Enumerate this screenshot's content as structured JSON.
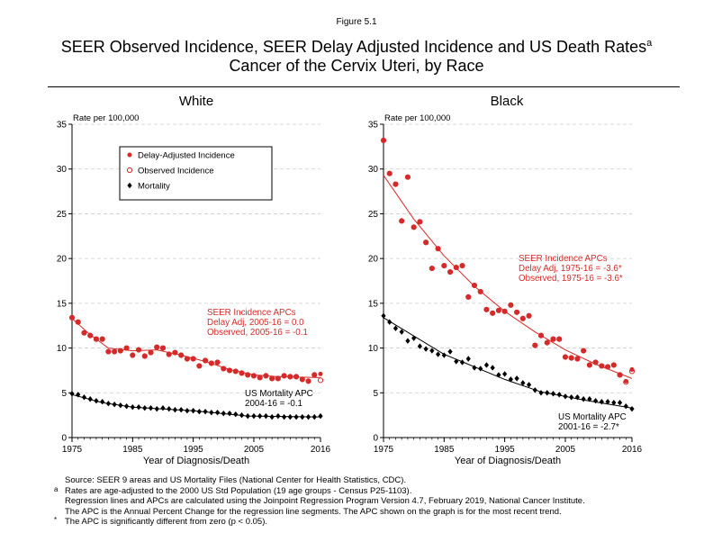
{
  "figure_label": "Figure 5.1",
  "title_line1": "SEER Observed Incidence, SEER Delay Adjusted Incidence and US Death Rates",
  "title_sup": "a",
  "title_line2": "Cancer of the Cervix Uteri, by Race",
  "legend": {
    "delay": "Delay-Adjusted Incidence",
    "observed": "Observed Incidence",
    "mortality": "Mortality"
  },
  "colors": {
    "incidence": "#d42a2a",
    "mortality": "#000000",
    "grid": "#cccccc"
  },
  "footnotes": [
    {
      "mark": "",
      "text": "Source: SEER 9 areas and US Mortality Files (National Center for Health Statistics, CDC)."
    },
    {
      "mark": "a",
      "text": "Rates are age-adjusted to the 2000 US Std Population (19 age groups - Census P25-1103)."
    },
    {
      "mark": "",
      "text": "Regression lines and APCs are calculated using the Joinpoint Regression Program Version 4.7, February 2019, National Cancer Institute."
    },
    {
      "mark": "",
      "text": "The APC is the Annual Percent Change for the regression line segments. The APC shown on the graph is for the most recent trend."
    },
    {
      "mark": "*",
      "text": "The APC is significantly different from zero (p < 0.05)."
    }
  ],
  "chart_data": [
    {
      "type": "scatter",
      "title": "White",
      "xlabel": "Year of Diagnosis/Death",
      "ylabel": "Rate per 100,000",
      "xlim": [
        1975,
        2016
      ],
      "ylim": [
        0,
        35
      ],
      "xticks": [
        1975,
        1985,
        1995,
        2005,
        2016
      ],
      "yticks": [
        0,
        5,
        10,
        15,
        20,
        25,
        30,
        35
      ],
      "grid": true,
      "legend_position": "top-left",
      "annotations": {
        "incidence": [
          "SEER Incidence APCs",
          "Delay Adj, 2005-16 = 0.0",
          "Observed, 2005-16 = -0.1"
        ],
        "mortality": [
          "US Mortality APC",
          "2004-16 = -0.1"
        ]
      },
      "x": [
        1975,
        1976,
        1977,
        1978,
        1979,
        1980,
        1981,
        1982,
        1983,
        1984,
        1985,
        1986,
        1987,
        1988,
        1989,
        1990,
        1991,
        1992,
        1993,
        1994,
        1995,
        1996,
        1997,
        1998,
        1999,
        2000,
        2001,
        2002,
        2003,
        2004,
        2005,
        2006,
        2007,
        2008,
        2009,
        2010,
        2011,
        2012,
        2013,
        2014,
        2015,
        2016
      ],
      "series": [
        {
          "name": "Delay-Adjusted Incidence",
          "values": [
            13.4,
            12.9,
            11.7,
            11.4,
            11.0,
            11.0,
            9.6,
            9.6,
            9.7,
            10.0,
            9.2,
            9.8,
            9.1,
            9.5,
            10.1,
            10.0,
            9.3,
            9.5,
            9.2,
            8.8,
            8.8,
            8.0,
            8.6,
            8.3,
            8.4,
            7.7,
            7.5,
            7.4,
            7.2,
            7.0,
            6.9,
            6.7,
            6.9,
            6.6,
            6.6,
            6.9,
            6.8,
            6.8,
            6.5,
            6.3,
            7.0,
            7.1
          ]
        },
        {
          "name": "Observed Incidence",
          "values": [
            13.4,
            12.9,
            11.7,
            11.4,
            11.0,
            11.0,
            9.6,
            9.6,
            9.7,
            10.0,
            9.2,
            9.8,
            9.1,
            9.5,
            10.1,
            10.0,
            9.3,
            9.5,
            9.2,
            8.8,
            8.8,
            8.0,
            8.6,
            8.3,
            8.4,
            7.7,
            7.5,
            7.4,
            7.2,
            7.0,
            6.9,
            6.7,
            6.9,
            6.6,
            6.6,
            6.9,
            6.8,
            6.8,
            6.5,
            6.3,
            7.0,
            6.4
          ]
        },
        {
          "name": "Mortality",
          "values": [
            4.9,
            4.8,
            4.5,
            4.3,
            4.1,
            4.0,
            3.8,
            3.7,
            3.6,
            3.5,
            3.4,
            3.4,
            3.3,
            3.3,
            3.2,
            3.3,
            3.2,
            3.1,
            3.1,
            3.0,
            3.0,
            2.9,
            2.9,
            2.8,
            2.8,
            2.7,
            2.7,
            2.6,
            2.5,
            2.4,
            2.4,
            2.4,
            2.4,
            2.3,
            2.4,
            2.3,
            2.3,
            2.3,
            2.3,
            2.3,
            2.3,
            2.4
          ]
        }
      ],
      "fits": {
        "incidence": [
          [
            1975,
            13.3
          ],
          [
            1978,
            11.5
          ],
          [
            1981,
            10.0
          ],
          [
            1985,
            9.7
          ],
          [
            1989,
            9.8
          ],
          [
            1993,
            9.2
          ],
          [
            1997,
            8.5
          ],
          [
            2001,
            7.6
          ],
          [
            2005,
            7.0
          ],
          [
            2009,
            6.8
          ],
          [
            2016,
            6.7
          ]
        ],
        "mortality": [
          [
            1975,
            4.8
          ],
          [
            1980,
            3.9
          ],
          [
            1985,
            3.4
          ],
          [
            1995,
            3.0
          ],
          [
            2004,
            2.4
          ],
          [
            2016,
            2.3
          ]
        ]
      }
    },
    {
      "type": "scatter",
      "title": "Black",
      "xlabel": "Year of Diagnosis/Death",
      "ylabel": "Rate per 100,000",
      "xlim": [
        1975,
        2016
      ],
      "ylim": [
        0,
        35
      ],
      "xticks": [
        1975,
        1985,
        1995,
        2005,
        2016
      ],
      "yticks": [
        0,
        5,
        10,
        15,
        20,
        25,
        30,
        35
      ],
      "grid": true,
      "legend_position": "none",
      "annotations": {
        "incidence": [
          "SEER Incidence APCs",
          "Delay Adj, 1975-16 = -3.6*",
          "Observed, 1975-16 = -3.6*"
        ],
        "mortality": [
          "US Mortality APC",
          "2001-16 = -2.7*"
        ]
      },
      "x": [
        1975,
        1976,
        1977,
        1978,
        1979,
        1980,
        1981,
        1982,
        1983,
        1984,
        1985,
        1986,
        1987,
        1988,
        1989,
        1990,
        1991,
        1992,
        1993,
        1994,
        1995,
        1996,
        1997,
        1998,
        1999,
        2000,
        2001,
        2002,
        2003,
        2004,
        2005,
        2006,
        2007,
        2008,
        2009,
        2010,
        2011,
        2012,
        2013,
        2014,
        2015,
        2016
      ],
      "series": [
        {
          "name": "Delay-Adjusted Incidence",
          "values": [
            33.2,
            29.5,
            28.3,
            24.2,
            29.1,
            23.5,
            24.1,
            21.8,
            18.9,
            21.1,
            19.2,
            18.5,
            19.0,
            19.2,
            15.7,
            17.0,
            16.3,
            14.3,
            13.9,
            14.2,
            14.1,
            14.8,
            14.0,
            13.3,
            13.6,
            10.3,
            11.4,
            10.6,
            11.0,
            11.0,
            9.0,
            8.9,
            8.8,
            9.7,
            8.1,
            8.4,
            8.0,
            7.9,
            8.1,
            7.0,
            6.3,
            7.6
          ]
        },
        {
          "name": "Observed Incidence",
          "values": [
            33.2,
            29.5,
            28.3,
            24.2,
            29.1,
            23.5,
            24.1,
            21.8,
            18.9,
            21.1,
            19.2,
            18.5,
            19.0,
            19.2,
            15.7,
            17.0,
            16.3,
            14.3,
            13.9,
            14.2,
            14.1,
            14.8,
            14.0,
            13.3,
            13.6,
            10.3,
            11.4,
            10.6,
            11.0,
            11.0,
            9.0,
            8.9,
            8.8,
            9.7,
            8.1,
            8.4,
            8.0,
            7.9,
            8.1,
            7.0,
            6.2,
            7.4
          ]
        },
        {
          "name": "Mortality",
          "values": [
            13.6,
            12.9,
            12.2,
            11.8,
            10.8,
            11.1,
            10.2,
            9.9,
            9.7,
            9.3,
            9.2,
            9.6,
            8.5,
            8.4,
            8.8,
            7.8,
            7.7,
            8.1,
            7.8,
            7.0,
            7.1,
            6.5,
            6.6,
            6.1,
            5.9,
            5.3,
            5.0,
            5.0,
            4.9,
            4.8,
            4.6,
            4.5,
            4.5,
            4.3,
            4.3,
            4.1,
            4.0,
            4.0,
            3.9,
            3.9,
            3.5,
            3.2
          ]
        }
      ],
      "fits": {
        "incidence": [
          [
            1975,
            29.3
          ],
          [
            1980,
            24.4
          ],
          [
            1985,
            20.3
          ],
          [
            1990,
            16.9
          ],
          [
            1995,
            14.1
          ],
          [
            2000,
            11.8
          ],
          [
            2005,
            9.8
          ],
          [
            2010,
            8.2
          ],
          [
            2016,
            6.6
          ]
        ],
        "mortality": [
          [
            1975,
            13.4
          ],
          [
            1985,
            9.3
          ],
          [
            1995,
            6.5
          ],
          [
            2001,
            5.1
          ],
          [
            2008,
            4.2
          ],
          [
            2016,
            3.3
          ]
        ]
      }
    }
  ]
}
